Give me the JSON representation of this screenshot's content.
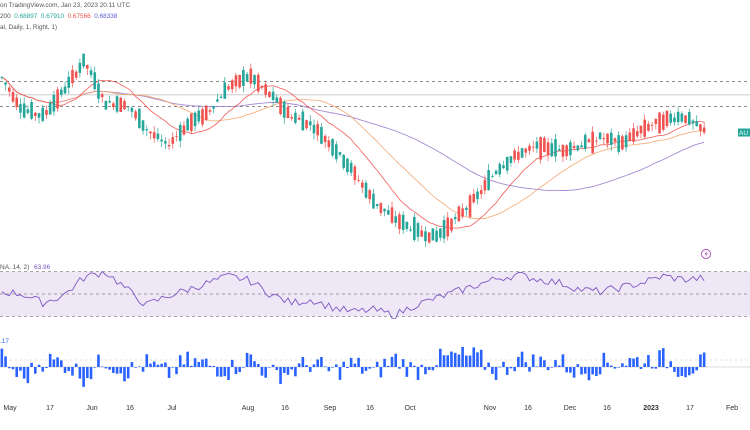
{
  "header": {
    "source_text": "on TradingView.com, Jan 23, 2023 20:11 UTC",
    "ma_label": "200",
    "ohlc": [
      "0.68897",
      "0.67910",
      "0.67566",
      "0.68338"
    ],
    "indicator_line": "al, Daily, 1, Right, 1)"
  },
  "rsi": {
    "label": "NA, 14, 2)",
    "value": "63.96"
  },
  "momentum": {
    "value": ".17"
  },
  "price_tag": "AU",
  "colors": {
    "up": "#26a69a",
    "down": "#ef5350",
    "rsi": "#7e57c2",
    "rsi_band": "#ede7f6",
    "ma_fast": "#ef5350",
    "ma_mid": "#f4a26a",
    "ma_slow": "#9575cd",
    "hist": "#2962ff",
    "level_line": "#555555",
    "price_tag": "#26a69a"
  },
  "chart_data": {
    "type": "candlestick",
    "date_range": [
      "2022-05-01",
      "2023-01-23"
    ],
    "x_ticks": [
      "May",
      "17",
      "Jun",
      "16",
      "Jul",
      "Aug",
      "16",
      "Sep",
      "16",
      "Oct",
      "Nov",
      "16",
      "Dec",
      "16",
      "2023",
      "17",
      "Feb"
    ],
    "price_path": [
      [
        0.71,
        0.708
      ],
      [
        0.705,
        0.693
      ],
      [
        0.692,
        0.69
      ],
      [
        0.694,
        0.702
      ],
      [
        0.703,
        0.716
      ],
      [
        0.714,
        0.696
      ],
      [
        0.694,
        0.696
      ],
      [
        0.697,
        0.684
      ],
      [
        0.683,
        0.676
      ],
      [
        0.678,
        0.686
      ],
      [
        0.687,
        0.692
      ],
      [
        0.694,
        0.704
      ],
      [
        0.706,
        0.709
      ],
      [
        0.708,
        0.7
      ],
      [
        0.698,
        0.69
      ],
      [
        0.69,
        0.686
      ],
      [
        0.688,
        0.676
      ],
      [
        0.677,
        0.664
      ],
      [
        0.664,
        0.65
      ],
      [
        0.65,
        0.642
      ],
      [
        0.643,
        0.636
      ],
      [
        0.636,
        0.633
      ],
      [
        0.634,
        0.642
      ],
      [
        0.643,
        0.652
      ],
      [
        0.652,
        0.665
      ],
      [
        0.665,
        0.672
      ],
      [
        0.671,
        0.676
      ],
      [
        0.676,
        0.674
      ],
      [
        0.673,
        0.676
      ],
      [
        0.676,
        0.68
      ],
      [
        0.679,
        0.677
      ],
      [
        0.677,
        0.684
      ],
      [
        0.684,
        0.688
      ],
      [
        0.688,
        0.69
      ],
      [
        0.688,
        0.683
      ]
    ],
    "level_lines": [
      0.7063,
      0.7,
      0.6945
    ],
    "rsi_series": [
      52,
      50,
      42,
      49,
      65,
      70,
      55,
      40,
      48,
      54,
      60,
      66,
      62,
      50,
      42,
      45,
      38,
      34,
      36,
      31,
      40,
      46,
      52,
      58,
      64,
      67,
      63,
      60,
      54,
      52,
      56,
      60,
      66,
      63,
      64
    ],
    "rsi_levels": [
      70,
      50,
      30
    ],
    "momentum_series": [
      0.8,
      -1.2,
      0.6,
      0.4,
      -0.9,
      0.7,
      -0.5,
      0.3,
      -0.6,
      0.5,
      0.2,
      -0.3,
      0.9,
      -0.7,
      -0.4,
      0.4,
      -0.5,
      0.3,
      -0.6,
      0.8,
      -0.4,
      0.6,
      1.0,
      0.9,
      -0.5,
      0.7,
      0.4,
      0.5,
      -0.6,
      0.3,
      0.5,
      0.6,
      0.8,
      -0.3,
      0.4
    ]
  }
}
